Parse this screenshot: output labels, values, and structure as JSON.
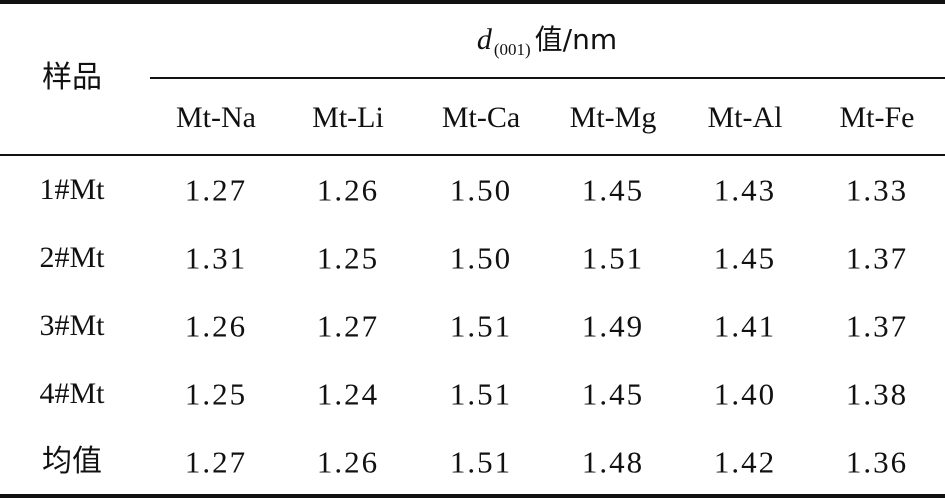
{
  "table": {
    "sample_header": "样品",
    "group_header": {
      "symbol": "d",
      "subscript": "(001)",
      "suffix": "值/nm"
    },
    "columns": [
      "Mt-Na",
      "Mt-Li",
      "Mt-Ca",
      "Mt-Mg",
      "Mt-Al",
      "Mt-Fe"
    ],
    "rows": [
      {
        "label": "1#Mt",
        "values": [
          "1.27",
          "1.26",
          "1.50",
          "1.45",
          "1.43",
          "1.33"
        ]
      },
      {
        "label": "2#Mt",
        "values": [
          "1.31",
          "1.25",
          "1.50",
          "1.51",
          "1.45",
          "1.37"
        ]
      },
      {
        "label": "3#Mt",
        "values": [
          "1.26",
          "1.27",
          "1.51",
          "1.49",
          "1.41",
          "1.37"
        ]
      },
      {
        "label": "4#Mt",
        "values": [
          "1.25",
          "1.24",
          "1.51",
          "1.45",
          "1.40",
          "1.38"
        ]
      },
      {
        "label": "均值",
        "values": [
          "1.27",
          "1.26",
          "1.51",
          "1.48",
          "1.42",
          "1.36"
        ]
      }
    ]
  }
}
